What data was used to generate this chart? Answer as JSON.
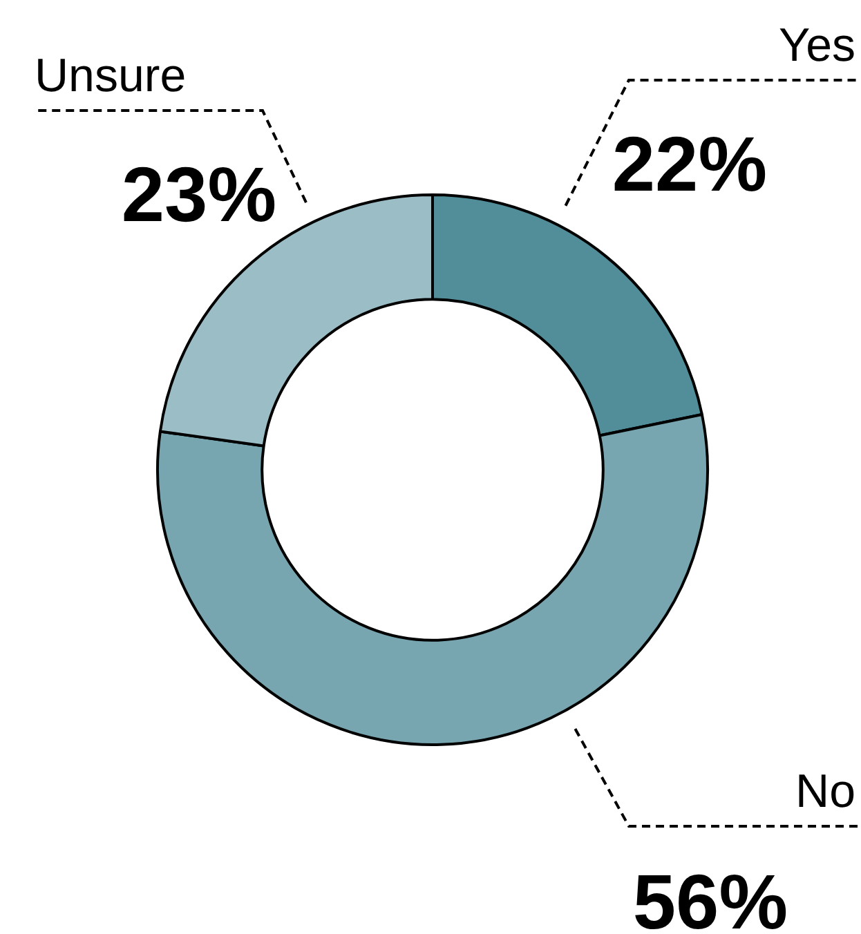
{
  "chart_data": {
    "type": "donut",
    "categories": [
      "Yes",
      "No",
      "Unsure"
    ],
    "values": [
      22,
      56,
      23
    ],
    "value_labels": [
      "22%",
      "56%",
      "23%"
    ],
    "colors": [
      "#528e9a",
      "#77a5b0",
      "#9bbdc6"
    ],
    "legend": false
  }
}
